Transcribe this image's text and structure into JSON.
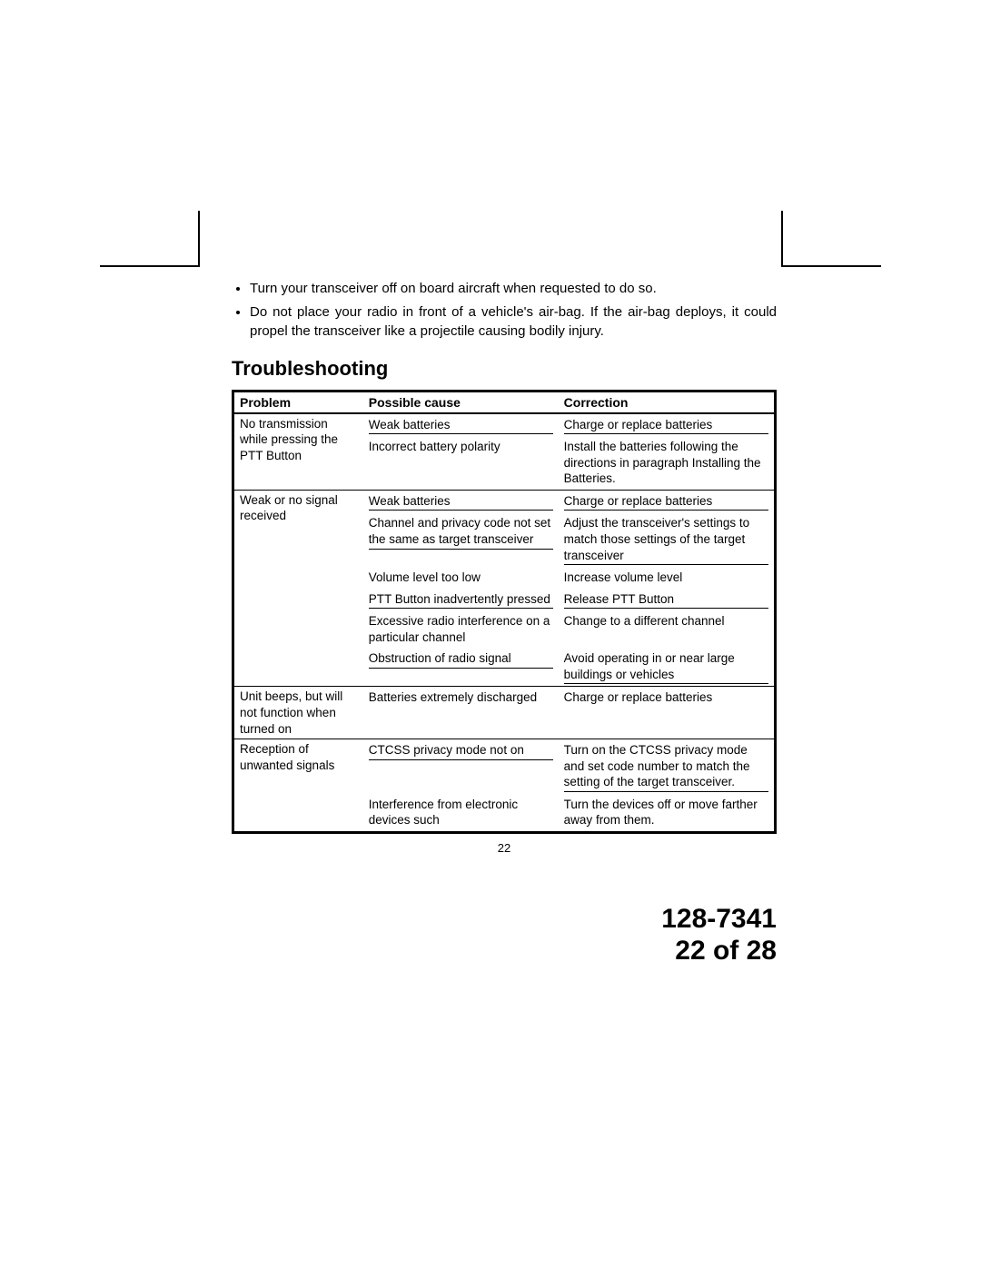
{
  "bullets": [
    "Turn your transceiver off on board aircraft when requested to do so.",
    "Do not place your radio in front of a vehicle's air-bag. If the air-bag deploys, it could propel the transceiver like a projectile causing bodily injury."
  ],
  "heading": "Troubleshooting",
  "table": {
    "headers": {
      "problem": "Problem",
      "cause": "Possible cause",
      "correction": "Correction"
    },
    "groups": [
      {
        "problem": "No transmission while pressing the PTT Button",
        "rows": [
          {
            "cause": "Weak batteries",
            "correction": "Charge or replace batteries",
            "underline": true
          },
          {
            "cause": "Incorrect battery polarity",
            "correction": "Install the batteries following the directions in paragraph Installing the Batteries."
          }
        ]
      },
      {
        "problem": "Weak or no signal received",
        "rows": [
          {
            "cause": "Weak batteries",
            "correction": "Charge or replace batteries",
            "underline": true
          },
          {
            "cause": "Channel and privacy code not set the same as target transceiver",
            "correction": "Adjust  the transceiver's settings to match those settings of the target transceiver",
            "underline": true
          },
          {
            "cause": "Volume level too low",
            "correction": "Increase volume level"
          },
          {
            "cause": "PTT Button inadvertently pressed",
            "correction": "Release PTT Button",
            "underline": true
          },
          {
            "cause": "Excessive radio interference on a particular channel",
            "correction": "Change to a different channel"
          },
          {
            "cause": "Obstruction of radio signal",
            "correction": "Avoid operating in or near large buildings or vehicles",
            "underline": true
          }
        ]
      },
      {
        "problem": "Unit beeps, but will not function when turned on",
        "rows": [
          {
            "cause": "Batteries extremely discharged",
            "correction": "Charge or replace batteries"
          }
        ]
      },
      {
        "problem": "Reception of unwanted signals",
        "rows": [
          {
            "cause": "CTCSS privacy mode not on",
            "correction": "Turn on the CTCSS privacy mode and set code number to match the setting of the target transceiver.",
            "underline": true
          },
          {
            "cause": "Interference from electronic devices such",
            "correction": "Turn the devices off or move farther away from them."
          }
        ]
      }
    ]
  },
  "page_number_small": "22",
  "footer_doc": "128-7341",
  "footer_page": "22 of 28"
}
